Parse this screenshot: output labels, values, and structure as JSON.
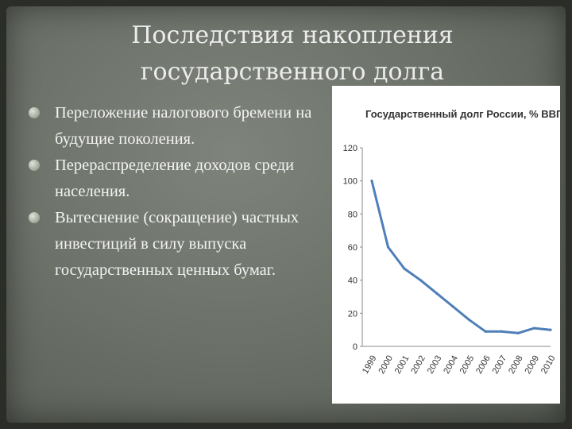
{
  "slide": {
    "title_line1": "Последствия накопления",
    "title_line2": "государственного долга",
    "bullets": [
      "Переложение налогового бремени на будущие поколения.",
      "Перераспределение доходов среди населения.",
      "Вытеснение (сокращение) частных инвестиций в силу выпуска государственных ценных бумаг."
    ]
  },
  "chart_data": {
    "type": "line",
    "title": "Государственный долг России, % ВВП",
    "categories": [
      "1999",
      "2000",
      "2001",
      "2002",
      "2003",
      "2004",
      "2005",
      "2006",
      "2007",
      "2008",
      "2009",
      "2010"
    ],
    "series": [
      {
        "values": [
          100,
          60,
          47,
          40,
          32,
          24,
          16,
          9,
          9,
          8,
          11,
          10
        ]
      }
    ],
    "yticks": [
      "0",
      "20",
      "40",
      "60",
      "80",
      "100",
      "120"
    ],
    "ylim": [
      0,
      120
    ],
    "grid": false,
    "line_color": "#4f7fb8"
  }
}
